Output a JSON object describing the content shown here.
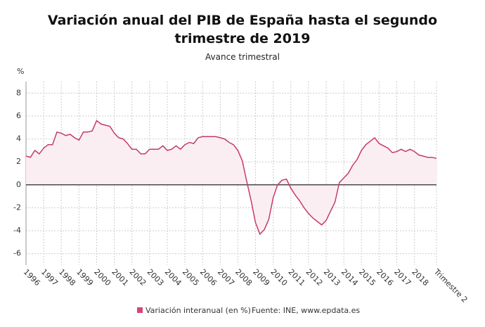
{
  "chart_data": {
    "type": "line",
    "title": "Variación anual del PIB de España hasta el segundo trimestre de 2019",
    "subtitle": "Avance trimestral",
    "y_label": "%",
    "source": "Fuente: INE, www.epdata.es",
    "categories": [
      "1996",
      null,
      null,
      null,
      "1997",
      null,
      null,
      null,
      "1998",
      null,
      null,
      null,
      "1999",
      null,
      null,
      null,
      "2000",
      null,
      null,
      null,
      "2001",
      null,
      null,
      null,
      "2002",
      null,
      null,
      null,
      "2003",
      null,
      null,
      null,
      "2004",
      null,
      null,
      null,
      "2005",
      null,
      null,
      null,
      "2006",
      null,
      null,
      null,
      "2007",
      null,
      null,
      null,
      "2008",
      null,
      null,
      null,
      "2009",
      null,
      null,
      null,
      "2010",
      null,
      null,
      null,
      "2011",
      null,
      null,
      null,
      "2012",
      null,
      null,
      null,
      "2013",
      null,
      null,
      null,
      "2014",
      null,
      null,
      null,
      "2015",
      null,
      null,
      null,
      "2016",
      null,
      null,
      null,
      "2017",
      null,
      null,
      null,
      "2018",
      null,
      null,
      null,
      null,
      "Trimestre 2"
    ],
    "series": [
      {
        "name": "Variación interanual (en %)",
        "color": "#c43a6e",
        "fill": "#fbeef3",
        "values": [
          2.5,
          2.4,
          3.0,
          2.7,
          3.2,
          3.5,
          3.5,
          4.6,
          4.5,
          4.3,
          4.4,
          4.1,
          3.9,
          4.6,
          4.6,
          4.7,
          5.6,
          5.3,
          5.2,
          5.1,
          4.5,
          4.1,
          4.0,
          3.6,
          3.1,
          3.1,
          2.7,
          2.7,
          3.1,
          3.1,
          3.1,
          3.4,
          3.0,
          3.1,
          3.4,
          3.1,
          3.5,
          3.7,
          3.6,
          4.1,
          4.2,
          4.2,
          4.2,
          4.2,
          4.1,
          4.0,
          3.7,
          3.5,
          3.0,
          2.1,
          0.3,
          -1.4,
          -3.3,
          -4.3,
          -3.9,
          -3.0,
          -1.1,
          0.0,
          0.4,
          0.5,
          -0.3,
          -0.9,
          -1.4,
          -2.0,
          -2.5,
          -2.9,
          -3.2,
          -3.5,
          -3.1,
          -2.3,
          -1.5,
          0.2,
          0.6,
          1.0,
          1.7,
          2.2,
          3.0,
          3.5,
          3.8,
          4.1,
          3.6,
          3.4,
          3.2,
          2.8,
          2.9,
          3.1,
          2.9,
          3.1,
          2.9,
          2.6,
          2.5,
          2.4,
          2.4,
          2.3
        ]
      }
    ],
    "ylim": [
      -7,
      9
    ],
    "yticks": [
      -6,
      -4,
      -2,
      0,
      2,
      4,
      6,
      8
    ],
    "grid": true
  }
}
